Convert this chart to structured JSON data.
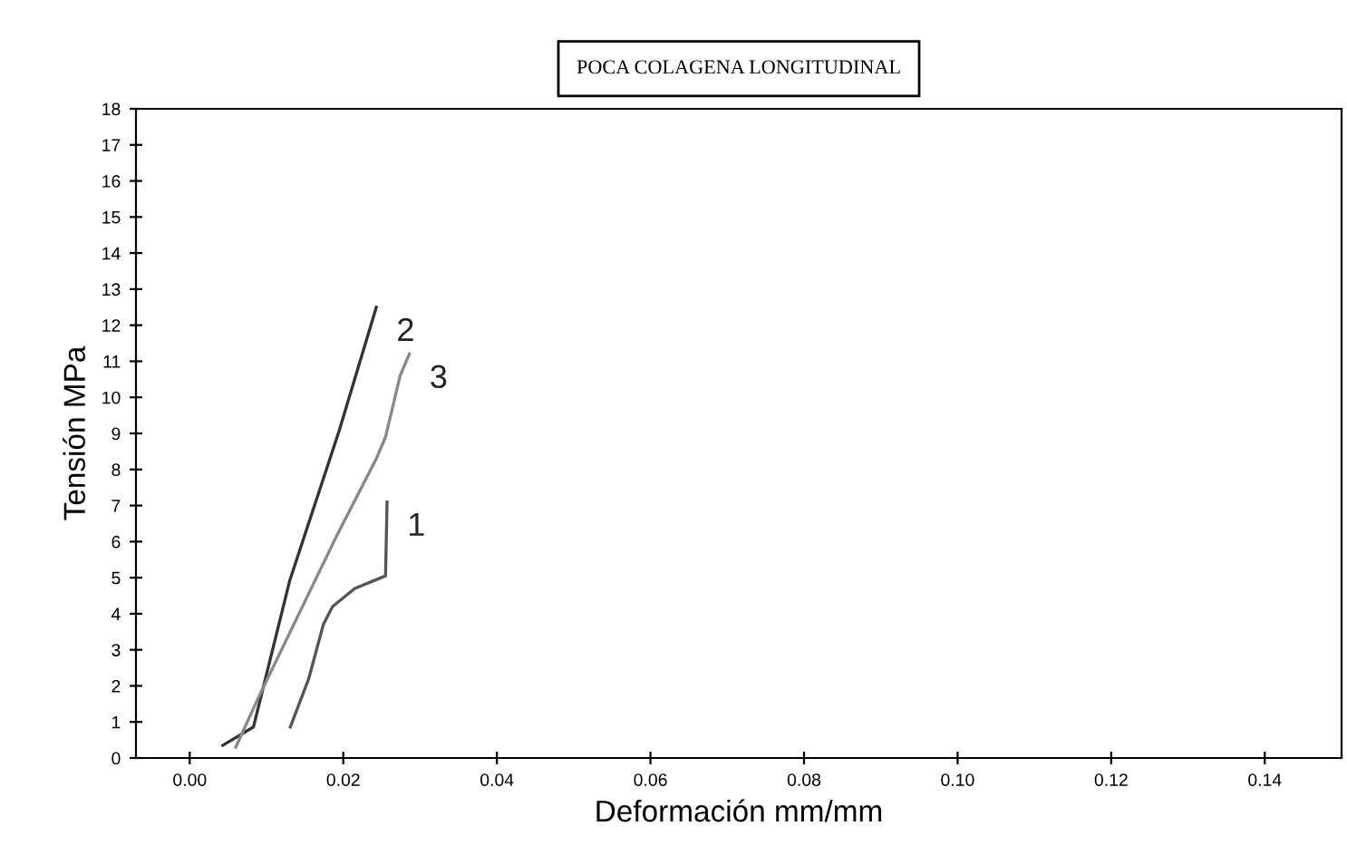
{
  "chart_data": {
    "type": "line",
    "title": "POCA COLAGENA LONGITUDINAL",
    "xlabel": "Deformación mm/mm",
    "ylabel": "Tensión MPa",
    "xlim": [
      -0.007,
      0.15
    ],
    "xticks": [
      {
        "value": 0,
        "label": "0.00"
      },
      {
        "value": 0.02,
        "label": "0.02"
      },
      {
        "value": 0.04,
        "label": "0.04"
      },
      {
        "value": 0.06,
        "label": "0.06"
      },
      {
        "value": 0.08,
        "label": "0.08"
      },
      {
        "value": 0.1,
        "label": "0.10"
      },
      {
        "value": 0.12,
        "label": "0.12"
      },
      {
        "value": 0.14,
        "label": "0.14"
      }
    ],
    "ylim": [
      0,
      18
    ],
    "yticks": [
      0,
      1,
      2,
      3,
      4,
      5,
      6,
      7,
      8,
      9,
      10,
      11,
      12,
      13,
      14,
      15,
      16,
      17,
      18
    ],
    "grid": false,
    "legend": false,
    "marker": "none",
    "line_style": "solid",
    "series": [
      {
        "name": "1",
        "color": "#555555",
        "x": [
          0.0131,
          0.0155,
          0.0174,
          0.0186,
          0.0215,
          0.0255,
          0.0257
        ],
        "values": [
          0.86,
          2.2,
          3.7,
          4.2,
          4.7,
          5.05,
          7.1
        ]
      },
      {
        "name": "2",
        "color": "#333333",
        "x": [
          0.0043,
          0.0083,
          0.013,
          0.0195,
          0.0243
        ],
        "values": [
          0.35,
          0.86,
          4.9,
          9.1,
          12.5
        ]
      },
      {
        "name": "3",
        "color": "#888888",
        "x": [
          0.006,
          0.009,
          0.019,
          0.0243,
          0.0255,
          0.0274,
          0.0286
        ],
        "values": [
          0.3,
          1.7,
          6.1,
          8.3,
          8.9,
          10.6,
          11.2
        ]
      }
    ]
  }
}
